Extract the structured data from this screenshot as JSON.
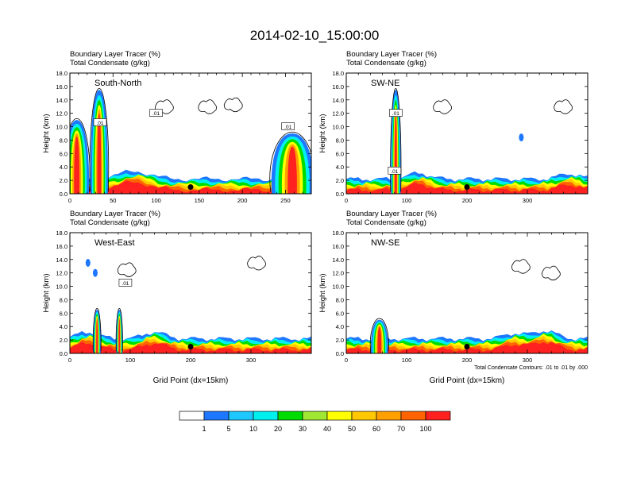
{
  "figure_title": "2014-02-10_15:00:00",
  "colors": {
    "levels": [
      "#ffffff",
      "#1e78ff",
      "#1ec8ff",
      "#00f0f0",
      "#00e68c",
      "#00dc00",
      "#a0e632",
      "#ffff00",
      "#ffc800",
      "#ffa000",
      "#ff6400",
      "#ff2020",
      "#c80000"
    ]
  },
  "chart_data": [
    {
      "type": "heatmap",
      "title": "South-North",
      "field_labels": [
        "Boundary Layer Tracer   (%)",
        "Total Condensate   (g/kg)"
      ],
      "xlabel": "",
      "ylabel": "Height (km)",
      "xlim": [
        0,
        280
      ],
      "ylim": [
        0,
        18
      ],
      "xticks": [
        "0",
        "50",
        "100",
        "150",
        "200",
        "250"
      ],
      "yticks": [
        "0.0",
        "2.0",
        "4.0",
        "6.0",
        "8.0",
        "10.0",
        "12.0",
        "14.0",
        "16.0",
        "18.0"
      ],
      "point_marker": [
        140,
        1.0
      ],
      "contour_labels": [
        {
          "text": ".01",
          "x": 35,
          "y": 10.6
        },
        {
          "text": ".01",
          "x": 100,
          "y": 12.0
        },
        {
          "text": ".01",
          "x": 253,
          "y": 10.0
        }
      ]
    },
    {
      "type": "heatmap",
      "title": "SW-NE",
      "field_labels": [
        "Boundary Layer Tracer   (%)",
        "Total Condensate   (g/kg)"
      ],
      "xlabel": "",
      "ylabel": "Height (km)",
      "xlim": [
        0,
        400
      ],
      "ylim": [
        0,
        18
      ],
      "xticks": [
        "0",
        "100",
        "200",
        "300"
      ],
      "yticks": [
        "0.0",
        "2.0",
        "4.0",
        "6.0",
        "8.0",
        "10.0",
        "12.0",
        "14.0",
        "16.0",
        "18.0"
      ],
      "point_marker": [
        200,
        1.0
      ],
      "contour_labels": [
        {
          "text": ".01",
          "x": 82,
          "y": 12.0
        },
        {
          "text": ".01",
          "x": 80,
          "y": 3.4
        }
      ]
    },
    {
      "type": "heatmap",
      "title": "West-East",
      "field_labels": [
        "Boundary Layer Tracer   (%)",
        "Total Condensate   (g/kg)"
      ],
      "xlabel": "Grid Point (dx=15km)",
      "ylabel": "Height (km)",
      "xlim": [
        0,
        400
      ],
      "ylim": [
        0,
        18
      ],
      "xticks": [
        "0",
        "100",
        "200",
        "300"
      ],
      "yticks": [
        "0.0",
        "2.0",
        "4.0",
        "6.0",
        "8.0",
        "10.0",
        "12.0",
        "14.0",
        "16.0",
        "18.0"
      ],
      "point_marker": [
        200,
        1.0
      ],
      "contour_labels": [
        {
          "text": ".01",
          "x": 92,
          "y": 10.5
        }
      ]
    },
    {
      "type": "heatmap",
      "title": "NW-SE",
      "field_labels": [
        "Boundary Layer Tracer   (%)",
        "Total Condensate   (g/kg)"
      ],
      "xlabel": "Grid Point (dx=15km)",
      "ylabel": "Height (km)",
      "xlim": [
        0,
        400
      ],
      "ylim": [
        0,
        18
      ],
      "xticks": [
        "0",
        "100",
        "200",
        "300"
      ],
      "yticks": [
        "0.0",
        "2.0",
        "4.0",
        "6.0",
        "8.0",
        "10.0",
        "12.0",
        "14.0",
        "16.0",
        "18.0"
      ],
      "point_marker": [
        200,
        1.0
      ],
      "contour_labels": [],
      "contour_info": "Total Condensate Contours: .01 to .01 by .000"
    }
  ],
  "colorbar": {
    "labels": [
      "1",
      "5",
      "10",
      "20",
      "30",
      "40",
      "50",
      "60",
      "70",
      "100"
    ]
  }
}
